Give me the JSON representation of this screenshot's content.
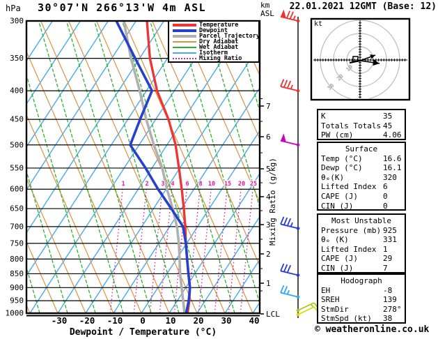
{
  "header": {
    "station_title": "30°07'N 266°13'W 4m ASL",
    "datetime_title": "22.01.2021 12GMT (Base: 12)",
    "pressure_unit": "hPa",
    "km_unit": "km\nASL"
  },
  "legend": {
    "items": [
      {
        "label": "Temperature",
        "color": "#ee3535",
        "weight": 4,
        "dash": "none"
      },
      {
        "label": "Dewpoint",
        "color": "#2541cc",
        "weight": 4,
        "dash": "none"
      },
      {
        "label": "Parcel Trajectory",
        "color": "#b0b0b0",
        "weight": 4,
        "dash": "none"
      },
      {
        "label": "Dry Adiabat",
        "color": "#e09040",
        "weight": 2,
        "dash": "none"
      },
      {
        "label": "Wet Adiabat",
        "color": "#28b428",
        "weight": 2,
        "dash": "none"
      },
      {
        "label": "Isotherm",
        "color": "#44aaee",
        "weight": 2,
        "dash": "none"
      },
      {
        "label": "Mixing Ratio",
        "color": "#e018a0",
        "weight": 2,
        "dash": "dotted"
      }
    ]
  },
  "axes": {
    "xlabel": "Dewpoint / Temperature (°C)",
    "right_axis_label": "Mixing Ratio (g/kg)",
    "pressure_ticks": [
      300,
      350,
      400,
      450,
      500,
      550,
      600,
      650,
      700,
      750,
      800,
      850,
      900,
      950,
      1000
    ],
    "temp_ticks": [
      -30,
      -20,
      -10,
      0,
      10,
      20,
      30,
      40
    ],
    "km_ticks": [
      7,
      6,
      5,
      4,
      3,
      2,
      1
    ],
    "lcl_label": "LCL"
  },
  "chart_data": {
    "type": "skewt_log_p",
    "pressure_range_hPa": [
      300,
      1000
    ],
    "surface_temp_axis_range_C": [
      -40,
      40
    ],
    "isotherm_step_C": 10,
    "series": [
      {
        "name": "Temperature",
        "color": "#ee3535",
        "width": 3.4,
        "points": [
          [
            1000,
            16.6
          ],
          [
            950,
            14.3
          ],
          [
            900,
            11.5
          ],
          [
            850,
            7.7
          ],
          [
            800,
            3.8
          ],
          [
            750,
            -0.3
          ],
          [
            700,
            -4.4
          ],
          [
            650,
            -9.1
          ],
          [
            600,
            -14.4
          ],
          [
            550,
            -20.3
          ],
          [
            500,
            -26.9
          ],
          [
            450,
            -35.4
          ],
          [
            400,
            -46.2
          ],
          [
            350,
            -56.3
          ],
          [
            300,
            -66.1
          ]
        ]
      },
      {
        "name": "Dewpoint",
        "color": "#2541cc",
        "width": 3.6,
        "points": [
          [
            1000,
            16.1
          ],
          [
            950,
            14.1
          ],
          [
            900,
            11.5
          ],
          [
            850,
            7.7
          ],
          [
            800,
            3.8
          ],
          [
            750,
            -0.3
          ],
          [
            700,
            -5.2
          ],
          [
            650,
            -13.6
          ],
          [
            600,
            -22.9
          ],
          [
            550,
            -32.3
          ],
          [
            500,
            -43.2
          ],
          [
            450,
            -45.6
          ],
          [
            400,
            -48.0
          ],
          [
            350,
            -61.6
          ],
          [
            300,
            -77.1
          ]
        ]
      },
      {
        "name": "Parcel Trajectory",
        "color": "#b0b0b0",
        "width": 3.6,
        "points": [
          [
            1000,
            15.5
          ],
          [
            950,
            12.1
          ],
          [
            900,
            8.5
          ],
          [
            850,
            4.7
          ],
          [
            800,
            1.1
          ],
          [
            750,
            -2.8
          ],
          [
            700,
            -7.4
          ],
          [
            650,
            -13.1
          ],
          [
            600,
            -19.7
          ],
          [
            550,
            -26.3
          ],
          [
            500,
            -34.7
          ],
          [
            450,
            -43.4
          ],
          [
            400,
            -52.4
          ],
          [
            350,
            -63.1
          ],
          [
            300,
            -74.4
          ]
        ]
      }
    ],
    "mixing_ratio_lines": [
      {
        "value": 1,
        "x": 177
      },
      {
        "value": 2,
        "x": 211
      },
      {
        "value": 3,
        "x": 234
      },
      {
        "value": 4,
        "x": 248
      },
      {
        "value": 6,
        "x": 269
      },
      {
        "value": 8,
        "x": 288
      },
      {
        "value": 10,
        "x": 304
      },
      {
        "value": 15,
        "x": 327
      },
      {
        "value": 20,
        "x": 347
      },
      {
        "value": 25,
        "x": 364
      }
    ]
  },
  "wind_barbs": [
    {
      "pressure": 300,
      "color": "#f03030",
      "features": [
        "flag",
        "full",
        "full",
        "half"
      ]
    },
    {
      "pressure": 400,
      "color": "#f03030",
      "features": [
        "full",
        "full",
        "full",
        "half"
      ]
    },
    {
      "pressure": 500,
      "color": "#cc00bb",
      "features": [
        "flag"
      ]
    },
    {
      "pressure": 705,
      "color": "#2838d8",
      "features": [
        "full",
        "full",
        "full",
        "half"
      ]
    },
    {
      "pressure": 855,
      "color": "#2838d8",
      "features": [
        "full",
        "full",
        "full"
      ]
    },
    {
      "pressure": 935,
      "color": "#30a8f0",
      "features": [
        "full",
        "full",
        "half"
      ]
    },
    {
      "pressure": 1000,
      "color": "#a8c818",
      "features": [
        "full",
        "half"
      ],
      "dir": "e",
      "dy": -4
    },
    {
      "pressure": 1000,
      "color": "#d8d800",
      "features": [
        "full"
      ],
      "dir": "e",
      "dy": 2
    }
  ],
  "hodograph": {
    "unit_label": "kt",
    "ring_labels": [
      "10",
      "20",
      "30"
    ],
    "rings_kt": [
      10,
      20,
      30
    ]
  },
  "panels": [
    {
      "title": "",
      "rows": [
        [
          "K",
          "35"
        ],
        [
          "Totals Totals",
          "45"
        ],
        [
          "PW (cm)",
          "4.06"
        ]
      ]
    },
    {
      "title": "Surface",
      "rows": [
        [
          "Temp (°C)",
          "16.6"
        ],
        [
          "Dewp (°C)",
          "16.1"
        ],
        [
          "θₑ(K)",
          "320"
        ],
        [
          "Lifted Index",
          "6"
        ],
        [
          "CAPE (J)",
          "0"
        ],
        [
          "CIN (J)",
          "0"
        ]
      ]
    },
    {
      "title": "Most Unstable",
      "rows": [
        [
          "Pressure (mb)",
          "925"
        ],
        [
          "θₑ (K)",
          "331"
        ],
        [
          "Lifted Index",
          "1"
        ],
        [
          "CAPE (J)",
          "29"
        ],
        [
          "CIN (J)",
          "7"
        ]
      ]
    },
    {
      "title": "Hodograph",
      "rows": [
        [
          "EH",
          "-8"
        ],
        [
          "SREH",
          "139"
        ],
        [
          "StmDir",
          "278°"
        ],
        [
          "StmSpd (kt)",
          "38"
        ]
      ]
    }
  ],
  "footer": {
    "credit": "© weatheronline.co.uk"
  }
}
